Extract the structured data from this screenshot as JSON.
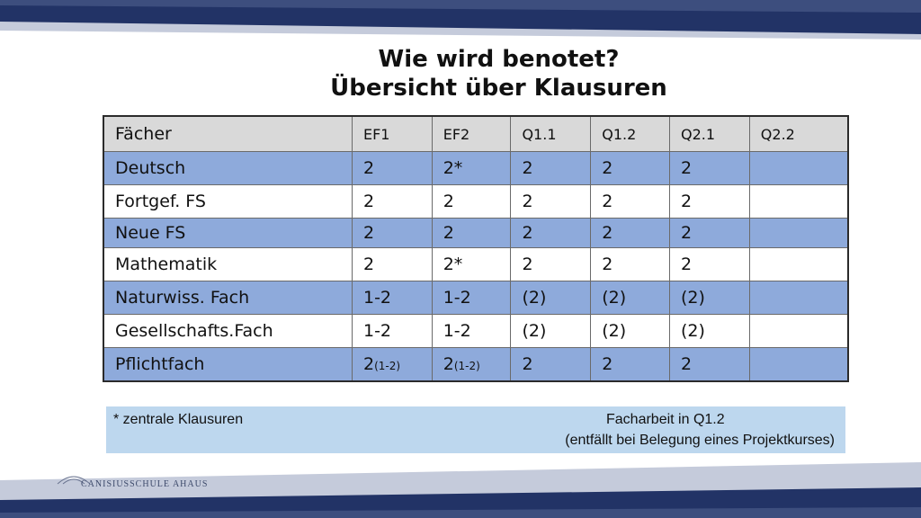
{
  "title": {
    "line1": "Wie wird benotet?",
    "line2": "Übersicht über Klausuren"
  },
  "table": {
    "headers": [
      "Fächer",
      "EF1",
      "EF2",
      "Q1.1",
      "Q1.2",
      "Q2.1",
      "Q2.2"
    ],
    "rows": [
      {
        "subject": "Deutsch",
        "cells": [
          "2",
          "2*",
          "2",
          "2",
          "2",
          ""
        ]
      },
      {
        "subject": "Fortgef. FS",
        "cells": [
          "2",
          "2",
          "2",
          "2",
          "2",
          ""
        ]
      },
      {
        "subject": "Neue FS",
        "cells": [
          "2",
          "2",
          "2",
          "2",
          "2",
          ""
        ]
      },
      {
        "subject": "Mathematik",
        "cells": [
          "2",
          "2*",
          "2",
          "2",
          "2",
          ""
        ]
      },
      {
        "subject": "Naturwiss. Fach",
        "cells": [
          "1-2",
          "1-2",
          "(2)",
          "(2)",
          "(2)",
          ""
        ]
      },
      {
        "subject": "Gesellschafts.Fach",
        "cells": [
          "1-2",
          "1-2",
          "(2)",
          "(2)",
          "(2)",
          ""
        ]
      },
      {
        "subject": "Pflichtfach",
        "cells": [
          "2",
          "2",
          "2",
          "2",
          "2",
          ""
        ],
        "subscripts": [
          "(1-2)",
          "(1-2)"
        ]
      }
    ]
  },
  "note": {
    "left": "* zentrale Klausuren",
    "right_line1": "Facharbeit  in Q1.2",
    "right_line2": "(entfällt bei Belegung eines Projektkurses)"
  },
  "footer": {
    "logo_text": "CANISIUSSCHULE AHAUS",
    "logo_icon": "school-building-icon"
  },
  "colors": {
    "header_bg": "#d9d9d9",
    "row_blue": "#8eaadb",
    "note_bg": "#bdd7ee",
    "band_dark": "#223366"
  }
}
